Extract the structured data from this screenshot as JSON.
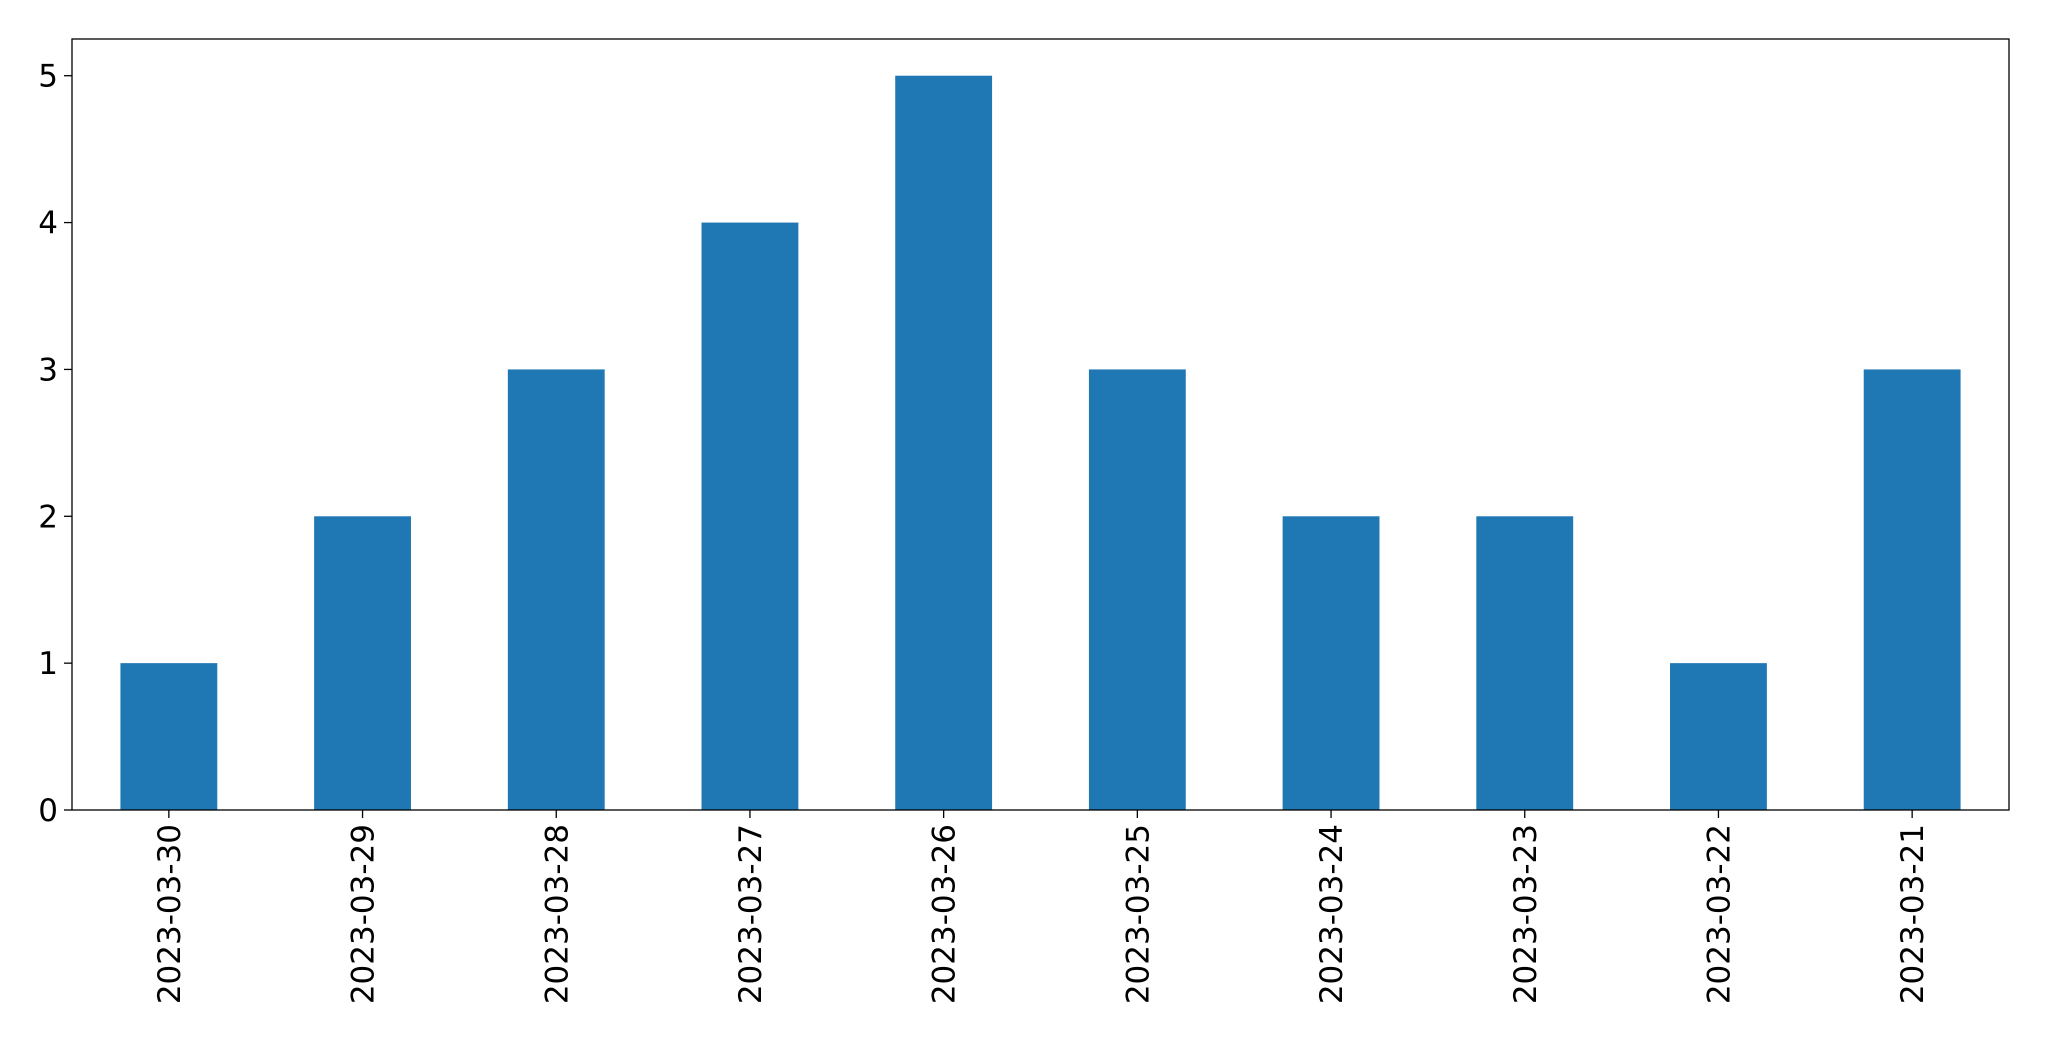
{
  "chart_data": {
    "type": "bar",
    "categories": [
      "2023-03-30",
      "2023-03-29",
      "2023-03-28",
      "2023-03-27",
      "2023-03-26",
      "2023-03-25",
      "2023-03-24",
      "2023-03-23",
      "2023-03-22",
      "2023-03-21"
    ],
    "values": [
      1,
      2,
      3,
      4,
      5,
      3,
      2,
      2,
      1,
      3
    ],
    "color": "#1f77b4",
    "ylim": [
      0,
      5.25
    ],
    "yticks": [
      0,
      1,
      2,
      3,
      4,
      5
    ],
    "grid": false
  }
}
